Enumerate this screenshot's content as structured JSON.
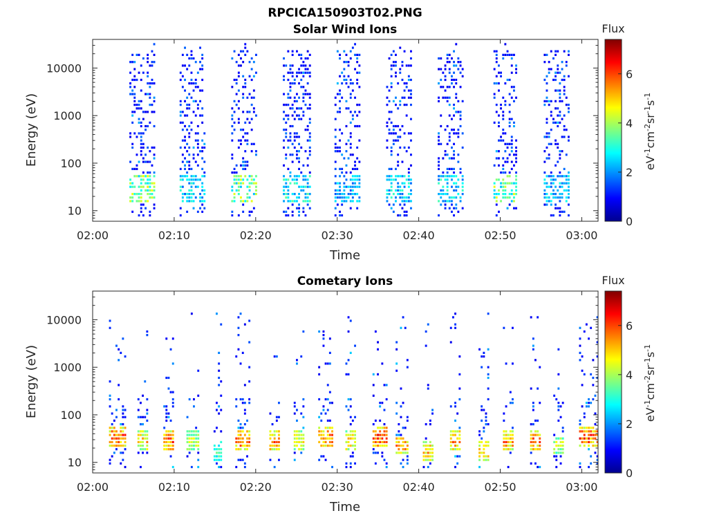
{
  "figure_title": "RPCICA150903T02.PNG",
  "chart_data": [
    {
      "type": "heatmap",
      "title": "Solar Wind Ions",
      "xlabel": "Time",
      "ylabel": "Energy (eV)",
      "x_range": [
        "02:00",
        "03:02"
      ],
      "x_ticks": [
        "02:00",
        "02:10",
        "02:20",
        "02:30",
        "02:40",
        "02:50",
        "03:00"
      ],
      "y_scale": "log",
      "y_range": [
        6,
        40000
      ],
      "y_ticks": [
        "10",
        "100",
        "1000",
        "10000"
      ],
      "colorbar": {
        "title": "Flux",
        "label": "eV-1cm-2sr-1s-1",
        "range": [
          0,
          7.4
        ],
        "ticks": [
          "0",
          "2",
          "4",
          "6"
        ]
      },
      "bursts": [
        {
          "start": "02:04:30",
          "end": "02:07:30",
          "peak_energy_eV": 25,
          "peak_flux": 4.8
        },
        {
          "start": "02:10:40",
          "end": "02:13:50",
          "peak_energy_eV": 25,
          "peak_flux": 3.2
        },
        {
          "start": "02:17:00",
          "end": "02:20:00",
          "peak_energy_eV": 25,
          "peak_flux": 4.6
        },
        {
          "start": "02:23:20",
          "end": "02:26:40",
          "peak_energy_eV": 25,
          "peak_flux": 3.6
        },
        {
          "start": "02:29:40",
          "end": "02:32:50",
          "peak_energy_eV": 25,
          "peak_flux": 2.8
        },
        {
          "start": "02:36:00",
          "end": "02:39:10",
          "peak_energy_eV": 25,
          "peak_flux": 3.2
        },
        {
          "start": "02:42:20",
          "end": "02:45:20",
          "peak_energy_eV": 25,
          "peak_flux": 3.4
        },
        {
          "start": "02:49:10",
          "end": "02:52:00",
          "peak_energy_eV": 25,
          "peak_flux": 4.6
        },
        {
          "start": "02:55:20",
          "end": "02:58:30",
          "peak_energy_eV": 25,
          "peak_flux": 3.0
        }
      ]
    },
    {
      "type": "heatmap",
      "title": "Cometary Ions",
      "xlabel": "Time",
      "ylabel": "Energy (eV)",
      "x_range": [
        "02:00",
        "03:02"
      ],
      "x_ticks": [
        "02:00",
        "02:10",
        "02:20",
        "02:30",
        "02:40",
        "02:50",
        "03:00"
      ],
      "y_scale": "log",
      "y_range": [
        6,
        40000
      ],
      "y_ticks": [
        "10",
        "100",
        "1000",
        "10000"
      ],
      "colorbar": {
        "title": "Flux",
        "label": "eV-1cm-2sr-1s-1",
        "range": [
          0,
          7.4
        ],
        "ticks": [
          "0",
          "2",
          "4",
          "6"
        ]
      },
      "bursts": [
        {
          "start": "02:02:00",
          "end": "02:04:00",
          "peak_energy_eV": 30,
          "peak_flux": 6.8
        },
        {
          "start": "02:05:30",
          "end": "02:06:50",
          "peak_energy_eV": 25,
          "peak_flux": 5.8
        },
        {
          "start": "02:08:40",
          "end": "02:10:00",
          "peak_energy_eV": 25,
          "peak_flux": 6.8
        },
        {
          "start": "02:11:30",
          "end": "02:13:00",
          "peak_energy_eV": 25,
          "peak_flux": 5.0
        },
        {
          "start": "02:14:50",
          "end": "02:15:40",
          "peak_energy_eV": 15,
          "peak_flux": 4.0
        },
        {
          "start": "02:17:30",
          "end": "02:19:20",
          "peak_energy_eV": 25,
          "peak_flux": 6.8
        },
        {
          "start": "02:21:40",
          "end": "02:22:50",
          "peak_energy_eV": 25,
          "peak_flux": 6.6
        },
        {
          "start": "02:24:40",
          "end": "02:26:00",
          "peak_energy_eV": 25,
          "peak_flux": 5.6
        },
        {
          "start": "02:27:40",
          "end": "02:29:20",
          "peak_energy_eV": 30,
          "peak_flux": 6.8
        },
        {
          "start": "02:31:00",
          "end": "02:32:20",
          "peak_energy_eV": 25,
          "peak_flux": 5.8
        },
        {
          "start": "02:34:20",
          "end": "02:36:00",
          "peak_energy_eV": 30,
          "peak_flux": 7.0
        },
        {
          "start": "02:37:10",
          "end": "02:38:40",
          "peak_energy_eV": 20,
          "peak_flux": 6.4
        },
        {
          "start": "02:40:30",
          "end": "02:41:40",
          "peak_energy_eV": 15,
          "peak_flux": 6.0
        },
        {
          "start": "02:43:50",
          "end": "02:45:00",
          "peak_energy_eV": 25,
          "peak_flux": 6.4
        },
        {
          "start": "02:47:20",
          "end": "02:48:40",
          "peak_energy_eV": 15,
          "peak_flux": 6.2
        },
        {
          "start": "02:50:20",
          "end": "02:51:40",
          "peak_energy_eV": 25,
          "peak_flux": 6.4
        },
        {
          "start": "02:53:40",
          "end": "02:55:00",
          "peak_energy_eV": 25,
          "peak_flux": 6.8
        },
        {
          "start": "02:56:30",
          "end": "02:57:40",
          "peak_energy_eV": 20,
          "peak_flux": 5.0
        },
        {
          "start": "02:59:40",
          "end": "03:02:00",
          "peak_energy_eV": 30,
          "peak_flux": 7.0
        }
      ]
    }
  ]
}
